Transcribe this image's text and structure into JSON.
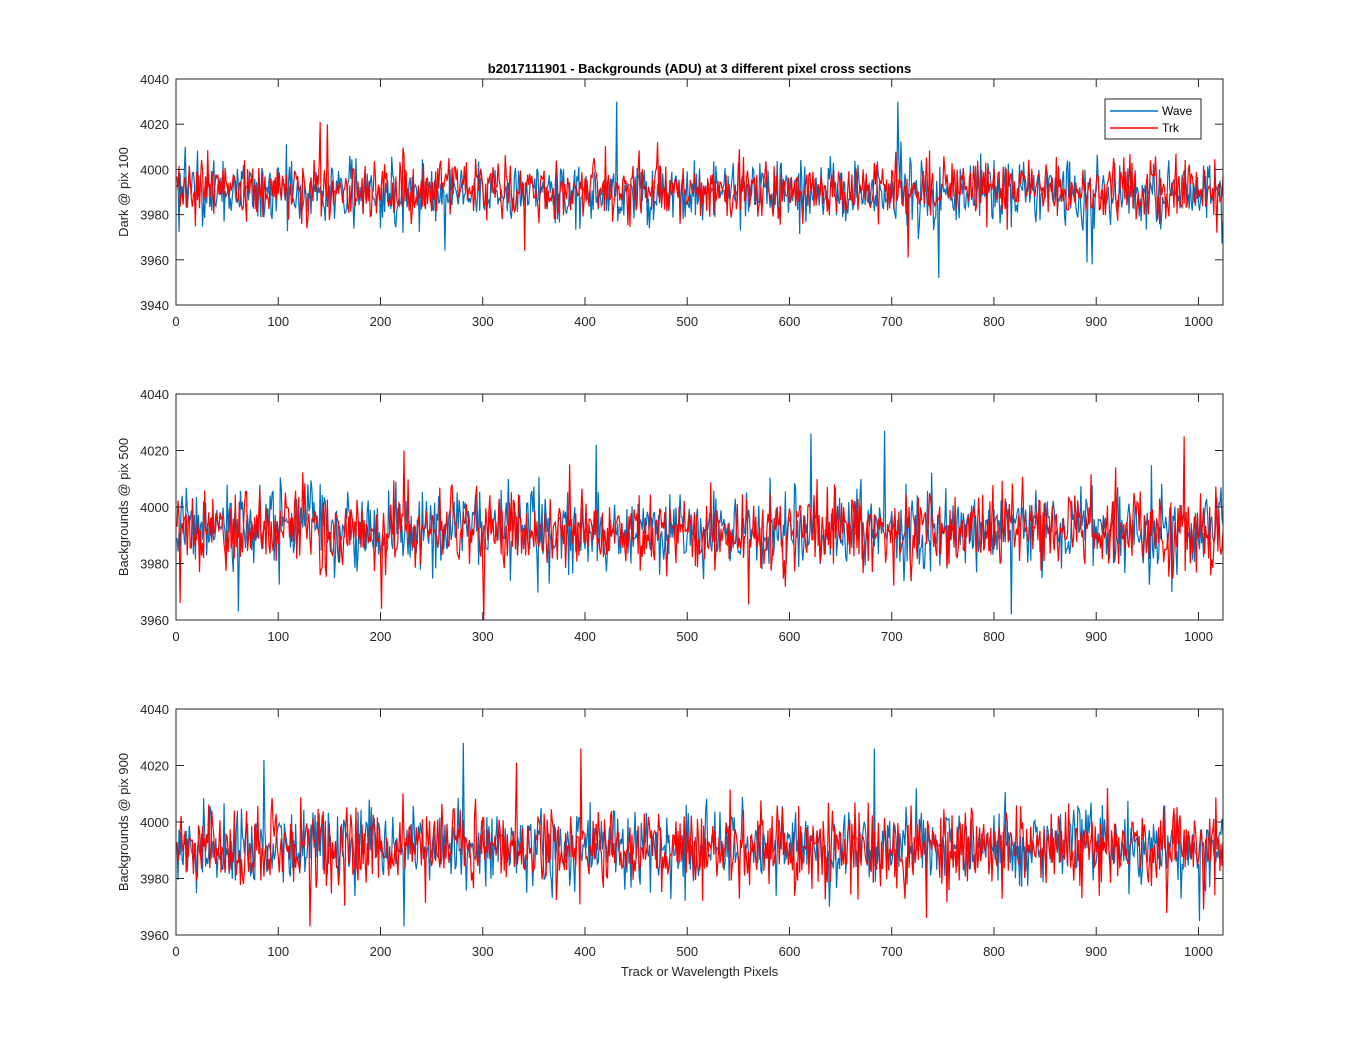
{
  "figure": {
    "background": "#ffffff",
    "axis_color": "#262626"
  },
  "chart_data": [
    {
      "type": "line",
      "title": "b2017111901 - Backgrounds (ADU) at 3 different pixel cross sections",
      "xlabel": "",
      "ylabel": "Dark @ pix 100",
      "xlim": [
        0,
        1024
      ],
      "ylim": [
        3940,
        4040
      ],
      "xticks": [
        0,
        100,
        200,
        300,
        400,
        500,
        600,
        700,
        800,
        900,
        1000
      ],
      "yticks": [
        3940,
        3960,
        3980,
        4000,
        4020,
        4040
      ],
      "legend": {
        "location": "top-right",
        "entries": [
          "Wave",
          "Trk"
        ]
      },
      "series": [
        {
          "name": "Wave",
          "color": "#0072bd",
          "n_points": 1024,
          "mean": 3990,
          "noise_sd": 7,
          "spikes": [
            [
              8,
              4010
            ],
            [
              262,
              3964
            ],
            [
              430,
              4030
            ],
            [
              705,
              4030
            ],
            [
              745,
              3952
            ],
            [
              890,
              3959
            ],
            [
              895,
              3958
            ]
          ]
        },
        {
          "name": "Trk",
          "color": "#ff0000",
          "n_points": 1024,
          "mean": 3991,
          "noise_sd": 6.5,
          "spikes": [
            [
              140,
              4021
            ],
            [
              147,
              4020
            ],
            [
              340,
              3964
            ],
            [
              715,
              3961
            ],
            [
              1017,
              3972
            ]
          ]
        }
      ]
    },
    {
      "type": "line",
      "title": "",
      "xlabel": "",
      "ylabel": "Backgrounds @ pix 500",
      "xlim": [
        0,
        1024
      ],
      "ylim": [
        3960,
        4040
      ],
      "xticks": [
        0,
        100,
        200,
        300,
        400,
        500,
        600,
        700,
        800,
        900,
        1000
      ],
      "yticks": [
        3960,
        3980,
        4000,
        4020,
        4040
      ],
      "legend": null,
      "series": [
        {
          "name": "Wave",
          "color": "#0072bd",
          "n_points": 1024,
          "mean": 3992,
          "noise_sd": 7,
          "spikes": [
            [
              60,
              3963
            ],
            [
              410,
              4022
            ],
            [
              620,
              4026
            ],
            [
              692,
              4027
            ],
            [
              816,
              3962
            ]
          ]
        },
        {
          "name": "Trk",
          "color": "#ff0000",
          "n_points": 1024,
          "mean": 3992,
          "noise_sd": 7,
          "spikes": [
            [
              3,
              3966
            ],
            [
              200,
              3964
            ],
            [
              222,
              4020
            ],
            [
              300,
              3960
            ],
            [
              985,
              4025
            ]
          ]
        }
      ]
    },
    {
      "type": "line",
      "title": "",
      "xlabel": "Track or Wavelength Pixels",
      "ylabel": "Backgrounds @ pix 900",
      "xlim": [
        0,
        1024
      ],
      "ylim": [
        3960,
        4040
      ],
      "xticks": [
        0,
        100,
        200,
        300,
        400,
        500,
        600,
        700,
        800,
        900,
        1000
      ],
      "yticks": [
        3960,
        3980,
        4000,
        4020,
        4040
      ],
      "legend": null,
      "series": [
        {
          "name": "Wave",
          "color": "#0072bd",
          "n_points": 1024,
          "mean": 3991,
          "noise_sd": 7,
          "spikes": [
            [
              85,
              4022
            ],
            [
              222,
              3963
            ],
            [
              280,
              4028
            ],
            [
              682,
              4026
            ],
            [
              1000,
              3965
            ]
          ]
        },
        {
          "name": "Trk",
          "color": "#ff0000",
          "n_points": 1024,
          "mean": 3991,
          "noise_sd": 7,
          "spikes": [
            [
              130,
              3963
            ],
            [
              332,
              4021
            ],
            [
              395,
              4026
            ],
            [
              733,
              3966
            ],
            [
              1004,
              3969
            ]
          ]
        }
      ]
    }
  ]
}
